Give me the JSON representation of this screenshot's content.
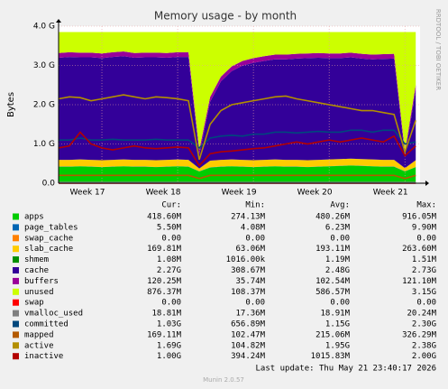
{
  "chart_data": {
    "type": "area",
    "title": "Memory usage - by month",
    "y_label": "Bytes",
    "side_text": "RRDTOOL / TOBI OETIKER",
    "footer": "Last update: Thu May 21 23:40:17 2026",
    "version": "Munin 2.0.57",
    "ylim": [
      0,
      4
    ],
    "yticks": [
      {
        "value": 0,
        "label": "0.0"
      },
      {
        "value": 1,
        "label": "1.0 G"
      },
      {
        "value": 2,
        "label": "2.0 G"
      },
      {
        "value": 3,
        "label": "3.0 G"
      },
      {
        "value": 4,
        "label": "4.0 G"
      }
    ],
    "xlim": [
      0,
      33.4
    ],
    "xticks": [
      {
        "value": 4,
        "label": "Week 17"
      },
      {
        "value": 11,
        "label": "Week 18"
      },
      {
        "value": 18,
        "label": "Week 19"
      },
      {
        "value": 25,
        "label": "Week 20"
      },
      {
        "value": 32,
        "label": "Week 21"
      }
    ],
    "grid": true,
    "stat_headers": [
      "Cur:",
      "Min:",
      "Avg:",
      "Max:"
    ],
    "x": [
      0,
      1,
      2,
      3,
      4,
      5,
      6,
      7,
      8,
      9,
      10,
      11,
      12,
      13,
      14,
      15,
      16,
      17,
      18,
      19,
      20,
      21,
      22,
      23,
      24,
      25,
      26,
      27,
      28,
      29,
      30,
      31,
      32,
      33
    ],
    "series": [
      {
        "name": "apps",
        "color": "#00cc00",
        "style": "area",
        "stats": [
          "418.60M",
          "274.13M",
          "480.26M",
          "916.05M"
        ],
        "values": [
          0.42,
          0.42,
          0.43,
          0.42,
          0.41,
          0.42,
          0.43,
          0.42,
          0.42,
          0.41,
          0.42,
          0.43,
          0.42,
          0.3,
          0.4,
          0.42,
          0.43,
          0.42,
          0.41,
          0.42,
          0.43,
          0.42,
          0.42,
          0.41,
          0.42,
          0.43,
          0.44,
          0.45,
          0.44,
          0.43,
          0.42,
          0.42,
          0.3,
          0.41
        ]
      },
      {
        "name": "page_tables",
        "color": "#0066b3",
        "style": "area",
        "stats": [
          "5.50M",
          "4.08M",
          "6.23M",
          "9.90M"
        ],
        "values": [
          0.005,
          0.005,
          0.005,
          0.005,
          0.005,
          0.005,
          0.005,
          0.005,
          0.005,
          0.005,
          0.005,
          0.005,
          0.005,
          0.005,
          0.005,
          0.005,
          0.005,
          0.005,
          0.005,
          0.005,
          0.005,
          0.005,
          0.005,
          0.005,
          0.005,
          0.005,
          0.005,
          0.005,
          0.005,
          0.005,
          0.005,
          0.005,
          0.005,
          0.005
        ]
      },
      {
        "name": "swap_cache",
        "color": "#ff8000",
        "style": "area",
        "stats": [
          "0.00",
          "0.00",
          "0.00",
          "0.00"
        ],
        "values": [
          0,
          0,
          0,
          0,
          0,
          0,
          0,
          0,
          0,
          0,
          0,
          0,
          0,
          0,
          0,
          0,
          0,
          0,
          0,
          0,
          0,
          0,
          0,
          0,
          0,
          0,
          0,
          0,
          0,
          0,
          0,
          0,
          0,
          0
        ]
      },
      {
        "name": "slab_cache",
        "color": "#ffcc00",
        "style": "area",
        "stats": [
          "169.81M",
          "63.06M",
          "193.11M",
          "263.60M"
        ],
        "values": [
          0.17,
          0.17,
          0.17,
          0.17,
          0.17,
          0.17,
          0.17,
          0.17,
          0.17,
          0.17,
          0.17,
          0.17,
          0.17,
          0.07,
          0.17,
          0.17,
          0.17,
          0.17,
          0.17,
          0.17,
          0.17,
          0.17,
          0.17,
          0.17,
          0.17,
          0.17,
          0.17,
          0.17,
          0.17,
          0.17,
          0.17,
          0.17,
          0.08,
          0.17
        ]
      },
      {
        "name": "shmem",
        "color": "#008f00",
        "style": "area",
        "stats": [
          "1.08M",
          "1016.00k",
          "1.19M",
          "1.51M"
        ],
        "values": [
          0.001,
          0.001,
          0.001,
          0.001,
          0.001,
          0.001,
          0.001,
          0.001,
          0.001,
          0.001,
          0.001,
          0.001,
          0.001,
          0.001,
          0.001,
          0.001,
          0.001,
          0.001,
          0.001,
          0.001,
          0.001,
          0.001,
          0.001,
          0.001,
          0.001,
          0.001,
          0.001,
          0.001,
          0.001,
          0.001,
          0.001,
          0.001,
          0.001,
          0.001
        ]
      },
      {
        "name": "cache",
        "color": "#330099",
        "style": "area",
        "stats": [
          "2.27G",
          "308.67M",
          "2.48G",
          "2.73G"
        ],
        "values": [
          2.6,
          2.62,
          2.6,
          2.61,
          2.6,
          2.62,
          2.63,
          2.6,
          2.61,
          2.62,
          2.6,
          2.61,
          2.62,
          0.35,
          1.5,
          2.0,
          2.25,
          2.4,
          2.48,
          2.52,
          2.55,
          2.56,
          2.58,
          2.6,
          2.6,
          2.58,
          2.57,
          2.58,
          2.56,
          2.55,
          2.57,
          2.58,
          0.3,
          1.8
        ]
      },
      {
        "name": "buffers",
        "color": "#990099",
        "style": "area",
        "stats": [
          "120.25M",
          "35.74M",
          "102.54M",
          "121.10M"
        ],
        "values": [
          0.12,
          0.12,
          0.12,
          0.12,
          0.12,
          0.12,
          0.12,
          0.12,
          0.12,
          0.12,
          0.12,
          0.12,
          0.12,
          0.12,
          0.12,
          0.12,
          0.12,
          0.12,
          0.12,
          0.12,
          0.12,
          0.12,
          0.12,
          0.12,
          0.12,
          0.12,
          0.12,
          0.12,
          0.12,
          0.12,
          0.12,
          0.12,
          0.12,
          0.12
        ]
      },
      {
        "name": "unused",
        "color": "#ccff00",
        "style": "area",
        "stats": [
          "876.37M",
          "108.37M",
          "586.57M",
          "3.15G"
        ],
        "values": [
          0.534,
          0.514,
          0.524,
          0.524,
          0.544,
          0.514,
          0.494,
          0.534,
          0.524,
          0.524,
          0.534,
          0.514,
          0.514,
          3.004,
          1.654,
          1.134,
          0.874,
          0.734,
          0.664,
          0.614,
          0.574,
          0.574,
          0.554,
          0.544,
          0.534,
          0.544,
          0.544,
          0.524,
          0.554,
          0.574,
          0.564,
          0.554,
          3.044,
          1.344
        ]
      },
      {
        "name": "swap",
        "color": "#ff0000",
        "style": "line",
        "stats": [
          "0.00",
          "0.00",
          "0.00",
          "0.00"
        ],
        "values": [
          0,
          0,
          0,
          0,
          0,
          0,
          0,
          0,
          0,
          0,
          0,
          0,
          0,
          0,
          0,
          0,
          0,
          0,
          0,
          0,
          0,
          0,
          0,
          0,
          0,
          0,
          0,
          0,
          0,
          0,
          0,
          0,
          0,
          0
        ]
      },
      {
        "name": "vmalloc_used",
        "color": "#808080",
        "style": "line",
        "stats": [
          "18.81M",
          "17.36M",
          "18.91M",
          "20.24M"
        ],
        "values": [
          0.018,
          0.018,
          0.018,
          0.018,
          0.018,
          0.018,
          0.018,
          0.018,
          0.018,
          0.018,
          0.018,
          0.018,
          0.018,
          0.018,
          0.018,
          0.018,
          0.018,
          0.018,
          0.018,
          0.018,
          0.018,
          0.018,
          0.018,
          0.018,
          0.018,
          0.018,
          0.018,
          0.018,
          0.018,
          0.018,
          0.018,
          0.018,
          0.018,
          0.018
        ]
      },
      {
        "name": "committed",
        "color": "#00487d",
        "style": "line",
        "stats": [
          "1.03G",
          "656.89M",
          "1.15G",
          "2.30G"
        ],
        "values": [
          1.1,
          1.1,
          1.15,
          1.1,
          1.1,
          1.12,
          1.1,
          1.1,
          1.1,
          1.12,
          1.1,
          1.1,
          1.1,
          0.9,
          1.15,
          1.2,
          1.22,
          1.2,
          1.25,
          1.25,
          1.3,
          1.3,
          1.28,
          1.3,
          1.32,
          1.3,
          1.3,
          1.35,
          1.35,
          1.3,
          1.35,
          1.35,
          1.0,
          1.05
        ]
      },
      {
        "name": "mapped",
        "color": "#b35a00",
        "style": "line",
        "stats": [
          "169.11M",
          "102.47M",
          "215.06M",
          "326.29M"
        ],
        "values": [
          0.2,
          0.2,
          0.2,
          0.2,
          0.2,
          0.2,
          0.2,
          0.2,
          0.2,
          0.2,
          0.2,
          0.2,
          0.2,
          0.12,
          0.2,
          0.2,
          0.2,
          0.2,
          0.2,
          0.2,
          0.2,
          0.2,
          0.2,
          0.2,
          0.2,
          0.2,
          0.2,
          0.2,
          0.2,
          0.2,
          0.2,
          0.2,
          0.12,
          0.2
        ]
      },
      {
        "name": "active",
        "color": "#b38f00",
        "style": "line",
        "stats": [
          "1.69G",
          "104.82M",
          "1.95G",
          "2.38G"
        ],
        "values": [
          2.15,
          2.2,
          2.18,
          2.1,
          2.15,
          2.2,
          2.25,
          2.2,
          2.15,
          2.2,
          2.18,
          2.15,
          2.1,
          0.6,
          1.5,
          1.85,
          2.0,
          2.05,
          2.1,
          2.15,
          2.2,
          2.22,
          2.15,
          2.1,
          2.05,
          2.0,
          1.95,
          1.9,
          1.85,
          1.85,
          1.8,
          1.75,
          0.8,
          1.6
        ]
      },
      {
        "name": "inactive",
        "color": "#b30000",
        "style": "line",
        "stats": [
          "1.00G",
          "394.24M",
          "1015.83M",
          "2.00G"
        ],
        "values": [
          0.9,
          0.95,
          1.3,
          1.0,
          0.9,
          0.85,
          0.9,
          0.95,
          0.9,
          0.88,
          0.9,
          0.92,
          0.9,
          0.45,
          0.75,
          0.8,
          0.82,
          0.85,
          0.88,
          0.9,
          0.95,
          1.0,
          1.05,
          1.0,
          1.05,
          1.1,
          1.05,
          1.1,
          1.15,
          1.1,
          1.05,
          1.2,
          0.7,
          0.95
        ]
      }
    ]
  }
}
